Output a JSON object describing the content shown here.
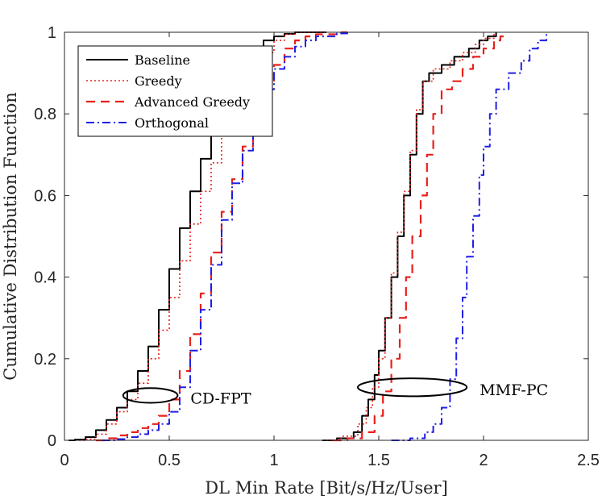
{
  "chart_data": {
    "type": "line",
    "title": "",
    "xlabel": "DL Min Rate [Bit/s/Hz/User]",
    "ylabel": "Cumulative Distribution Function",
    "xlim": [
      0,
      2.5
    ],
    "ylim": [
      0,
      1
    ],
    "x_ticks": [
      0,
      0.5,
      1,
      1.5,
      2,
      2.5
    ],
    "x_tick_labels": [
      "0",
      "0.5",
      "1",
      "1.5",
      "2",
      "2.5"
    ],
    "y_ticks": [
      0,
      0.2,
      0.4,
      0.6,
      0.8,
      1
    ],
    "y_tick_labels": [
      "0",
      "0.2",
      "0.4",
      "0.6",
      "0.8",
      "1"
    ],
    "grid": false,
    "legend_position": "top-left",
    "series": [
      {
        "name": "Baseline",
        "group": "CD-FPT",
        "color": "#000000",
        "style": "solid",
        "points": [
          [
            0.02,
            0
          ],
          [
            0.05,
            0.002
          ],
          [
            0.1,
            0.008
          ],
          [
            0.15,
            0.025
          ],
          [
            0.2,
            0.05
          ],
          [
            0.25,
            0.08
          ],
          [
            0.3,
            0.12
          ],
          [
            0.35,
            0.17
          ],
          [
            0.4,
            0.23
          ],
          [
            0.45,
            0.32
          ],
          [
            0.5,
            0.42
          ],
          [
            0.55,
            0.52
          ],
          [
            0.6,
            0.61
          ],
          [
            0.65,
            0.69
          ],
          [
            0.7,
            0.76
          ],
          [
            0.72,
            0.8
          ],
          [
            0.76,
            0.84
          ],
          [
            0.8,
            0.88
          ],
          [
            0.85,
            0.92
          ],
          [
            0.9,
            0.955
          ],
          [
            0.95,
            0.98
          ],
          [
            1.0,
            0.99
          ],
          [
            1.05,
            0.996
          ],
          [
            1.1,
            1.0
          ],
          [
            1.25,
            1.0
          ]
        ]
      },
      {
        "name": "Baseline",
        "group": "MMF-PC",
        "color": "#000000",
        "style": "solid",
        "points": [
          [
            1.23,
            0
          ],
          [
            1.3,
            0.005
          ],
          [
            1.38,
            0.02
          ],
          [
            1.42,
            0.06
          ],
          [
            1.45,
            0.1
          ],
          [
            1.48,
            0.16
          ],
          [
            1.5,
            0.22
          ],
          [
            1.53,
            0.3
          ],
          [
            1.56,
            0.4
          ],
          [
            1.59,
            0.5
          ],
          [
            1.62,
            0.6
          ],
          [
            1.65,
            0.7
          ],
          [
            1.68,
            0.8
          ],
          [
            1.71,
            0.88
          ],
          [
            1.74,
            0.9
          ],
          [
            1.8,
            0.92
          ],
          [
            1.86,
            0.94
          ],
          [
            1.93,
            0.96
          ],
          [
            1.98,
            0.98
          ],
          [
            2.02,
            0.99
          ],
          [
            2.06,
            1.0
          ]
        ]
      },
      {
        "name": "Greedy",
        "group": "CD-FPT",
        "color": "#e8201c",
        "style": "dotted",
        "points": [
          [
            0.05,
            0
          ],
          [
            0.1,
            0.003
          ],
          [
            0.15,
            0.015
          ],
          [
            0.2,
            0.04
          ],
          [
            0.25,
            0.07
          ],
          [
            0.3,
            0.1
          ],
          [
            0.35,
            0.14
          ],
          [
            0.4,
            0.2
          ],
          [
            0.45,
            0.27
          ],
          [
            0.5,
            0.35
          ],
          [
            0.55,
            0.44
          ],
          [
            0.6,
            0.53
          ],
          [
            0.65,
            0.61
          ],
          [
            0.7,
            0.68
          ],
          [
            0.75,
            0.75
          ],
          [
            0.8,
            0.82
          ],
          [
            0.85,
            0.87
          ],
          [
            0.9,
            0.91
          ],
          [
            0.95,
            0.95
          ],
          [
            1.0,
            0.98
          ],
          [
            1.05,
            0.995
          ],
          [
            1.1,
            1.0
          ],
          [
            1.25,
            1.0
          ]
        ]
      },
      {
        "name": "Greedy",
        "group": "MMF-PC",
        "color": "#e8201c",
        "style": "dotted",
        "points": [
          [
            1.25,
            0
          ],
          [
            1.32,
            0.01
          ],
          [
            1.4,
            0.04
          ],
          [
            1.44,
            0.08
          ],
          [
            1.47,
            0.13
          ],
          [
            1.5,
            0.2
          ],
          [
            1.53,
            0.3
          ],
          [
            1.56,
            0.41
          ],
          [
            1.59,
            0.51
          ],
          [
            1.62,
            0.61
          ],
          [
            1.65,
            0.71
          ],
          [
            1.68,
            0.81
          ],
          [
            1.71,
            0.88
          ],
          [
            1.76,
            0.91
          ],
          [
            1.84,
            0.93
          ],
          [
            1.9,
            0.95
          ],
          [
            1.96,
            0.97
          ],
          [
            2.0,
            0.985
          ],
          [
            2.05,
            1.0
          ]
        ]
      },
      {
        "name": "Advanced Greedy",
        "group": "CD-FPT",
        "color": "#e8201c",
        "style": "dashed",
        "points": [
          [
            0.15,
            0
          ],
          [
            0.2,
            0.005
          ],
          [
            0.25,
            0.012
          ],
          [
            0.3,
            0.02
          ],
          [
            0.35,
            0.03
          ],
          [
            0.4,
            0.04
          ],
          [
            0.45,
            0.06
          ],
          [
            0.5,
            0.1
          ],
          [
            0.55,
            0.17
          ],
          [
            0.6,
            0.26
          ],
          [
            0.65,
            0.36
          ],
          [
            0.7,
            0.46
          ],
          [
            0.75,
            0.56
          ],
          [
            0.8,
            0.64
          ],
          [
            0.85,
            0.72
          ],
          [
            0.9,
            0.8
          ],
          [
            0.95,
            0.87
          ],
          [
            1.0,
            0.92
          ],
          [
            1.05,
            0.96
          ],
          [
            1.1,
            0.98
          ],
          [
            1.15,
            0.99
          ],
          [
            1.2,
            0.995
          ],
          [
            1.3,
            1.0
          ],
          [
            1.35,
            1.0
          ]
        ]
      },
      {
        "name": "Advanced Greedy",
        "group": "MMF-PC",
        "color": "#e8201c",
        "style": "dashed",
        "points": [
          [
            1.28,
            0
          ],
          [
            1.35,
            0.005
          ],
          [
            1.42,
            0.02
          ],
          [
            1.48,
            0.06
          ],
          [
            1.52,
            0.12
          ],
          [
            1.56,
            0.2
          ],
          [
            1.6,
            0.3
          ],
          [
            1.63,
            0.4
          ],
          [
            1.66,
            0.5
          ],
          [
            1.7,
            0.6
          ],
          [
            1.73,
            0.7
          ],
          [
            1.76,
            0.8
          ],
          [
            1.8,
            0.86
          ],
          [
            1.85,
            0.88
          ],
          [
            1.9,
            0.91
          ],
          [
            1.95,
            0.94
          ],
          [
            2.0,
            0.96
          ],
          [
            2.05,
            0.98
          ],
          [
            2.08,
            0.99
          ],
          [
            2.1,
            1.0
          ]
        ]
      },
      {
        "name": "Orthogonal",
        "group": "CD-FPT",
        "color": "#1f1fe6",
        "style": "dashdot",
        "points": [
          [
            0.18,
            0
          ],
          [
            0.25,
            0.003
          ],
          [
            0.3,
            0.008
          ],
          [
            0.35,
            0.015
          ],
          [
            0.4,
            0.025
          ],
          [
            0.45,
            0.04
          ],
          [
            0.5,
            0.07
          ],
          [
            0.55,
            0.13
          ],
          [
            0.6,
            0.22
          ],
          [
            0.65,
            0.32
          ],
          [
            0.7,
            0.43
          ],
          [
            0.75,
            0.54
          ],
          [
            0.8,
            0.63
          ],
          [
            0.85,
            0.71
          ],
          [
            0.9,
            0.79
          ],
          [
            0.95,
            0.86
          ],
          [
            1.0,
            0.91
          ],
          [
            1.05,
            0.94
          ],
          [
            1.1,
            0.965
          ],
          [
            1.15,
            0.98
          ],
          [
            1.2,
            0.99
          ],
          [
            1.3,
            0.997
          ],
          [
            1.35,
            1.0
          ]
        ]
      },
      {
        "name": "Orthogonal",
        "group": "MMF-PC",
        "color": "#1f1fe6",
        "style": "dashdot",
        "points": [
          [
            1.56,
            0
          ],
          [
            1.65,
            0.005
          ],
          [
            1.72,
            0.02
          ],
          [
            1.76,
            0.04
          ],
          [
            1.8,
            0.08
          ],
          [
            1.84,
            0.15
          ],
          [
            1.87,
            0.25
          ],
          [
            1.9,
            0.35
          ],
          [
            1.92,
            0.45
          ],
          [
            1.95,
            0.55
          ],
          [
            1.98,
            0.65
          ],
          [
            2.0,
            0.72
          ],
          [
            2.03,
            0.8
          ],
          [
            2.06,
            0.86
          ],
          [
            2.12,
            0.9
          ],
          [
            2.18,
            0.93
          ],
          [
            2.22,
            0.96
          ],
          [
            2.26,
            0.98
          ],
          [
            2.3,
            1.0
          ]
        ]
      }
    ],
    "legend": [
      {
        "label": "Baseline",
        "color": "#000000",
        "style": "solid"
      },
      {
        "label": "Greedy",
        "color": "#e8201c",
        "style": "dotted"
      },
      {
        "label": "Advanced Greedy",
        "color": "#e8201c",
        "style": "dashed"
      },
      {
        "label": "Orthogonal",
        "color": "#1f1fe6",
        "style": "dashdot"
      }
    ],
    "annotations": [
      {
        "text": "CD-FPT",
        "ellipse_center": [
          0.41,
          0.11
        ],
        "ellipse_radii": [
          0.13,
          0.018
        ]
      },
      {
        "text": "MMF-PC",
        "ellipse_center": [
          1.66,
          0.13
        ],
        "ellipse_radii": [
          0.26,
          0.022
        ]
      }
    ]
  }
}
